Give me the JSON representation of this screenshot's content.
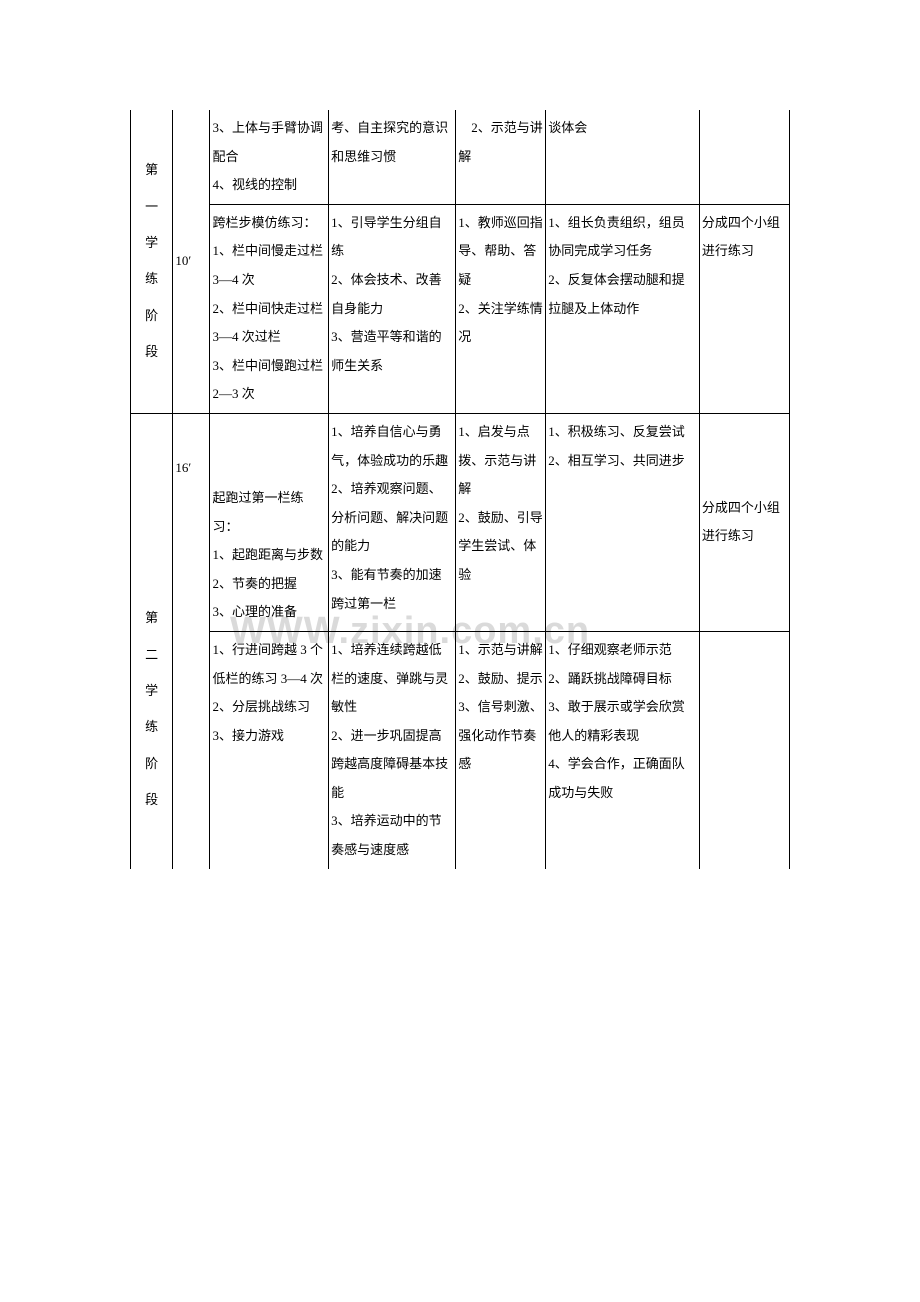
{
  "watermark": "WWW.zixin.com.cn",
  "columns": {
    "c1_width": "40",
    "c2_width": "35",
    "c3_width": "112",
    "c4_width": "120",
    "c5_width": "85",
    "c6_width": "145",
    "c7_width": "85"
  },
  "rows": {
    "r1": {
      "col1": "第一学练阶段",
      "col2": "10′",
      "col3": "3、上体与手臂协调配合\n4、视线的控制",
      "col4": "考、自主探究的意识和思维习惯",
      "col5": "　2、示范与讲解",
      "col6": "谈体会",
      "col7": ""
    },
    "r2": {
      "col3": "跨栏步模仿练习：\n1、栏中间慢走过栏 3—4 次\n2、栏中间快走过栏 3—4 次过栏\n3、栏中间慢跑过栏 2—3 次",
      "col4": "1、引导学生分组自练\n2、体会技术、改善自身能力\n3、营造平等和谐的师生关系",
      "col5": "1、教师巡回指导、帮助、答疑\n2、关注学练情况",
      "col6": "1、组长负责组织，组员协同完成学习任务\n2、反复体会摆动腿和提拉腿及上体动作",
      "col7": "分成四个小组进行练习"
    },
    "r3": {
      "col1": "第二学练阶段",
      "col2": "16′",
      "col3": "起跑过第一栏练习：\n1、起跑距离与步数\n2、节奏的把握\n3、心理的准备",
      "col4": "1、培养自信心与勇气，体验成功的乐趣\n2、培养观察问题、分析问题、解决问题的能力\n3、能有节奏的加速跨过第一栏",
      "col5": "1、启发与点拨、示范与讲解\n2、鼓励、引导学生尝试、体验",
      "col6": "1、积极练习、反复尝试\n2、相互学习、共同进步",
      "col7": "分成四个小组进行练习"
    },
    "r4": {
      "col3": "1、行进间跨越 3 个低栏的练习 3—4 次\n2、分层挑战练习\n3、接力游戏",
      "col4": "1、培养连续跨越低栏的速度、弹跳与灵敏性\n2、进一步巩固提高跨越高度障碍基本技能\n3、培养运动中的节奏感与速度感",
      "col5": "1、示范与讲解\n2、鼓励、提示\n3、信号刺激、强化动作节奏感",
      "col6": "1、仔细观察老师示范\n2、踊跃挑战障碍目标\n3、敢于展示或学会欣赏他人的精彩表现\n4、学会合作，正确面队成功与失败",
      "col7": ""
    }
  }
}
